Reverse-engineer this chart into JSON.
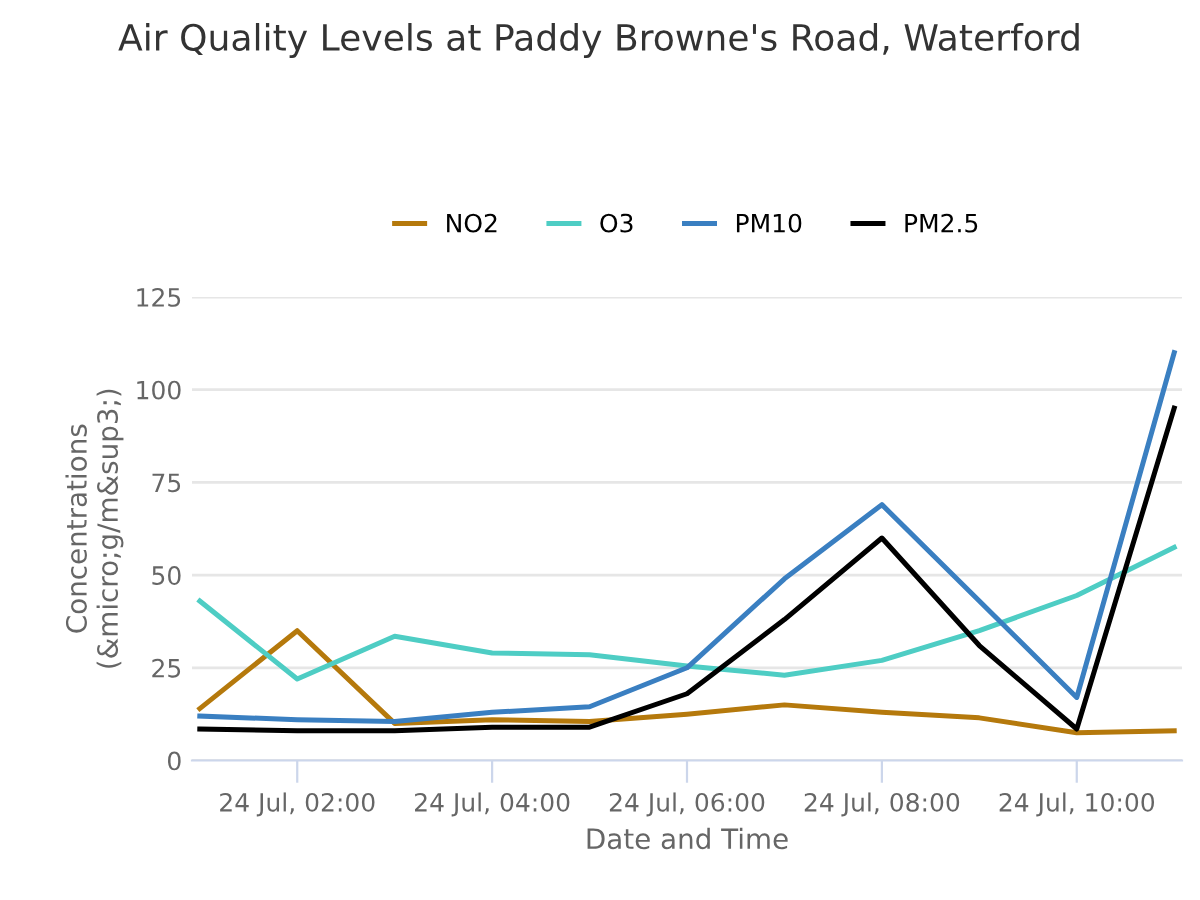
{
  "chart_data": {
    "type": "line",
    "title": "Air Quality Levels at Paddy Browne's Road, Waterford",
    "xlabel": "Date and Time",
    "ylabel": "Concentrations\n(&micro;g/m&sup3;)",
    "categories": [
      null,
      "24 Jul, 02:00",
      null,
      "24 Jul, 04:00",
      null,
      "24 Jul, 06:00",
      null,
      "24 Jul, 08:00",
      null,
      "24 Jul, 10:00",
      null
    ],
    "series": [
      {
        "name": "NO2",
        "color": "#b5790c",
        "values": [
          14,
          35,
          10,
          11,
          10.5,
          12.5,
          15,
          13,
          11.5,
          7.5,
          8
        ]
      },
      {
        "name": "O3",
        "color": "#4ecdc4",
        "values": [
          43,
          22,
          33.5,
          29,
          28.5,
          25.5,
          23,
          27,
          35,
          44.5,
          57.5
        ]
      },
      {
        "name": "PM10",
        "color": "#3a7fc1",
        "values": [
          12,
          11,
          10.5,
          13,
          14.5,
          25,
          49,
          69,
          43,
          17,
          110
        ]
      },
      {
        "name": "PM2.5",
        "color": "#000000",
        "values": [
          8.5,
          8,
          8,
          9,
          9,
          18,
          38,
          60,
          31,
          8.5,
          95
        ]
      }
    ],
    "ylim": [
      0,
      125
    ],
    "yticks": [
      0,
      25,
      50,
      75,
      100,
      125
    ],
    "grid": "y",
    "legend": "top",
    "marker": "none",
    "line_style": "solid"
  }
}
